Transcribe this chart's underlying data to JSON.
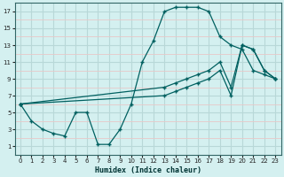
{
  "xlabel": "Humidex (Indice chaleur)",
  "bg_color": "#d4f0f0",
  "grid_major_color": "#b8d8d8",
  "grid_minor_color": "#e8c8c8",
  "line_color": "#006060",
  "xlim": [
    -0.5,
    23.5
  ],
  "ylim": [
    0,
    18
  ],
  "xticks": [
    0,
    1,
    2,
    3,
    4,
    5,
    6,
    7,
    8,
    9,
    10,
    11,
    12,
    13,
    14,
    15,
    16,
    17,
    18,
    19,
    20,
    21,
    22,
    23
  ],
  "yticks": [
    1,
    3,
    5,
    7,
    9,
    11,
    13,
    15,
    17
  ],
  "line1_x": [
    0,
    1,
    2,
    3,
    4,
    5,
    6,
    7,
    8,
    9,
    10,
    11,
    12,
    13,
    14,
    15,
    16,
    17,
    18,
    19,
    20,
    21,
    22,
    23
  ],
  "line1_y": [
    6,
    4,
    3,
    2.5,
    2.2,
    5,
    5,
    1.2,
    1.2,
    3,
    6,
    11,
    13.5,
    17,
    17.5,
    17.5,
    17.5,
    17,
    14,
    13,
    12.5,
    10,
    9.5,
    9
  ],
  "line2_x": [
    0,
    13,
    14,
    15,
    16,
    17,
    18,
    19,
    20,
    21,
    22,
    23
  ],
  "line2_y": [
    6,
    8,
    8.5,
    9,
    9.5,
    10,
    11,
    8,
    13,
    12.5,
    10,
    9
  ],
  "line3_x": [
    0,
    13,
    14,
    15,
    16,
    17,
    18,
    19,
    20,
    21,
    22,
    23
  ],
  "line3_y": [
    6,
    7,
    7.5,
    8,
    8.5,
    9,
    10,
    7,
    13,
    12.5,
    10,
    9
  ]
}
